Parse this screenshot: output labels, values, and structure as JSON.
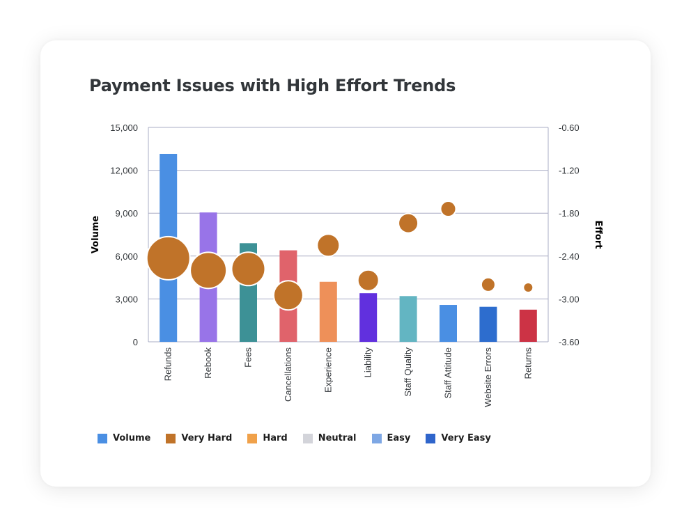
{
  "chart_data": {
    "type": "bar",
    "title": "Payment Issues with High Effort Trends",
    "categories": [
      "Refunds",
      "Rebook",
      "Fees",
      "Cancellations",
      "Experience",
      "Liability",
      "Staff Quality",
      "Staff Attitude",
      "Website Errors",
      "Returns"
    ],
    "series": [
      {
        "name": "Volume",
        "type": "bar",
        "axis": "left",
        "values": [
          13150,
          9050,
          6900,
          6400,
          4200,
          3400,
          3200,
          2580,
          2450,
          2250
        ],
        "colors": [
          "#4a8fe3",
          "#9874e8",
          "#3d9196",
          "#e0636b",
          "#ee9059",
          "#6130de",
          "#63b5c2",
          "#4a8fe3",
          "#2d6dce",
          "#cc3345"
        ]
      },
      {
        "name": "Very Hard",
        "type": "bubble",
        "axis": "right",
        "values": [
          -2.43,
          -2.6,
          -2.58,
          -2.95,
          -2.25,
          -2.74,
          -1.94,
          -1.74,
          -2.8,
          -2.84
        ],
        "sizes": [
          31,
          26,
          24,
          21,
          16,
          15,
          14,
          11,
          10,
          7
        ]
      }
    ],
    "ylabel": "Volume",
    "ylim": [
      0,
      15000
    ],
    "yticks": [
      "0",
      "3,000",
      "6,000",
      "9,000",
      "12,000",
      "15,000"
    ],
    "y2label": "Effort",
    "y2lim": [
      -3.6,
      -0.6
    ],
    "y2ticks": [
      "-3.60",
      "-3.00",
      "-2.40",
      "-1.80",
      "-1.20",
      "-0.60"
    ],
    "grid": true,
    "legend_position": "bottom-left",
    "legend": [
      {
        "label": "Volume",
        "color": "#4a8fe3"
      },
      {
        "label": "Very Hard",
        "color": "#c07329"
      },
      {
        "label": "Hard",
        "color": "#f0a14a"
      },
      {
        "label": "Neutral",
        "color": "#d3d4da"
      },
      {
        "label": "Easy",
        "color": "#7ea7e4"
      },
      {
        "label": "Very Easy",
        "color": "#2f65cb"
      }
    ],
    "bubble_color": "#c07329"
  }
}
